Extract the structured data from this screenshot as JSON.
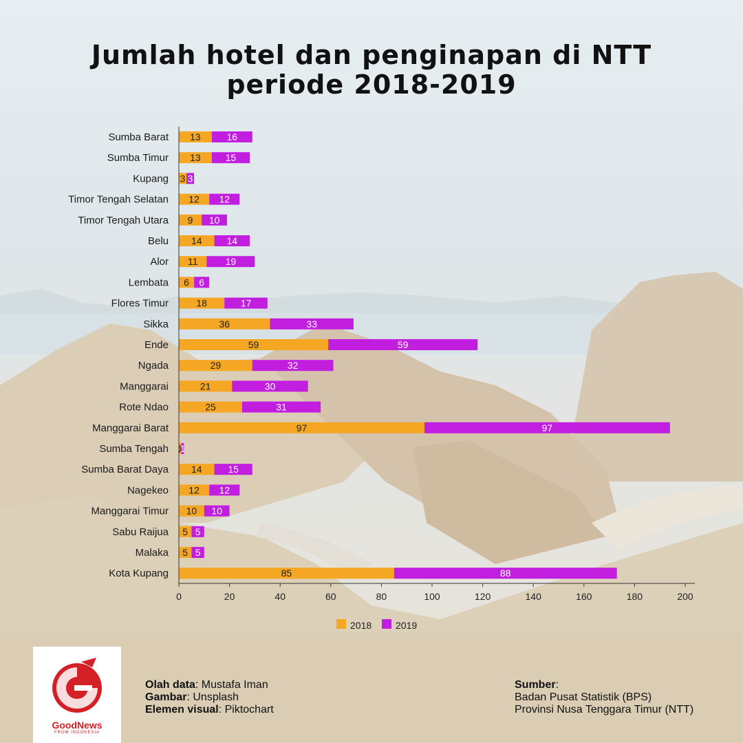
{
  "title_line1": "Jumlah hotel dan penginapan di NTT",
  "title_line2": "periode 2018-2019",
  "colors": {
    "s2018": "#f5a623",
    "s2019": "#c21ee0",
    "axis": "#333333"
  },
  "chart_data": {
    "type": "bar",
    "orientation": "horizontal",
    "stacked": true,
    "categories": [
      "Sumba Barat",
      "Sumba Timur",
      "Kupang",
      "Timor Tengah Selatan",
      "Timor Tengah Utara",
      "Belu",
      "Alor",
      "Lembata",
      "Flores Timur",
      "Sikka",
      "Ende",
      "Ngada",
      "Manggarai",
      "Rote Ndao",
      "Manggarai Barat",
      "Sumba Tengah",
      "Sumba Barat Daya",
      "Nagekeo",
      "Manggarai Timur",
      "Sabu Raijua",
      "Malaka",
      "Kota Kupang"
    ],
    "series": [
      {
        "name": "2018",
        "values": [
          13,
          13,
          3,
          12,
          9,
          14,
          11,
          6,
          18,
          36,
          59,
          29,
          21,
          25,
          97,
          1,
          14,
          12,
          10,
          5,
          5,
          85
        ]
      },
      {
        "name": "2019",
        "values": [
          16,
          15,
          3,
          12,
          10,
          14,
          19,
          6,
          17,
          33,
          59,
          32,
          30,
          31,
          97,
          1,
          15,
          12,
          10,
          5,
          5,
          88
        ]
      }
    ],
    "xlim": [
      0,
      200
    ],
    "xticks": [
      0,
      20,
      40,
      60,
      80,
      100,
      120,
      140,
      160,
      180,
      200
    ],
    "legend": "bottom",
    "grid": false
  },
  "credits": {
    "olah_label": "Olah data",
    "olah_value": ": Mustafa Iman",
    "gambar_label": "Gambar",
    "gambar_value": ": Unsplash",
    "elemen_label": "Elemen visual",
    "elemen_value": ": Piktochart"
  },
  "source": {
    "label": "Sumber",
    "colon": ":",
    "line1": "Badan Pusat Statistik (BPS)",
    "line2": "Provinsi Nusa Tenggara Timur (NTT)"
  },
  "logo": {
    "name": "GoodNews",
    "sub": "FROM INDONESIA",
    "icon": "garuda-icon"
  }
}
